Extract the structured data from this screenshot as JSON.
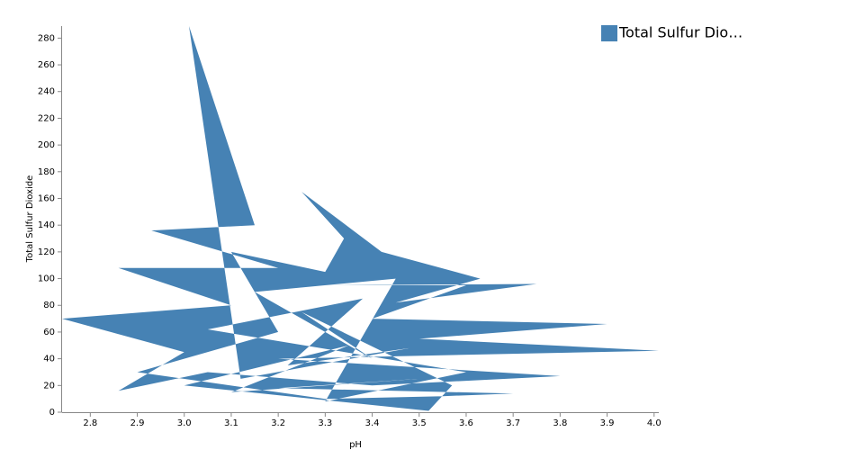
{
  "chart_data": {
    "type": "area",
    "x_label": "pH",
    "y_label": "Total Sulfur Dioxide",
    "xlim": [
      2.74,
      4.01
    ],
    "ylim": [
      0,
      289
    ],
    "xticks": [
      2.8,
      2.9,
      {
        "value": 3,
        "label": "3.0"
      },
      3.1,
      3.2,
      3.3,
      3.4,
      3.5,
      3.6,
      3.7,
      3.8,
      3.9,
      {
        "value": 4,
        "label": "4.0"
      }
    ],
    "yticks": [
      0,
      20,
      40,
      60,
      80,
      100,
      120,
      140,
      160,
      180,
      200,
      220,
      240,
      260,
      280
    ],
    "legend_position": "top-right",
    "series": [
      {
        "name": "Total Sulfur Dio…",
        "color": "#4682b4",
        "x": [
          3.01,
          3.15,
          2.93,
          3.2,
          2.86,
          3.1,
          2.74,
          3.0,
          2.86,
          3.05,
          3.4,
          3.8,
          3.2,
          4.01,
          3.5,
          3.9,
          3.4,
          3.6,
          3.3,
          3.75,
          3.45,
          3.63,
          3.42,
          3.25,
          3.34,
          3.3,
          3.1,
          3.2,
          2.9,
          3.3,
          3.55,
          3.7,
          3.2,
          3.5,
          3.1,
          3.35,
          3.0,
          3.52,
          3.57,
          3.25,
          3.4,
          3.15,
          3.45,
          3.3,
          3.6,
          3.05,
          3.38,
          3.22,
          3.48,
          3.12
        ],
        "values": [
          289,
          140,
          136,
          108,
          108,
          80,
          70,
          45,
          16,
          30,
          20,
          27,
          40,
          46,
          55,
          66,
          70,
          95,
          95,
          96,
          82,
          100,
          120,
          165,
          130,
          105,
          120,
          60,
          30,
          10,
          12,
          14,
          18,
          25,
          15,
          50,
          20,
          1,
          20,
          75,
          40,
          90,
          100,
          8,
          30,
          62,
          85,
          35,
          48,
          25
        ]
      }
    ]
  }
}
